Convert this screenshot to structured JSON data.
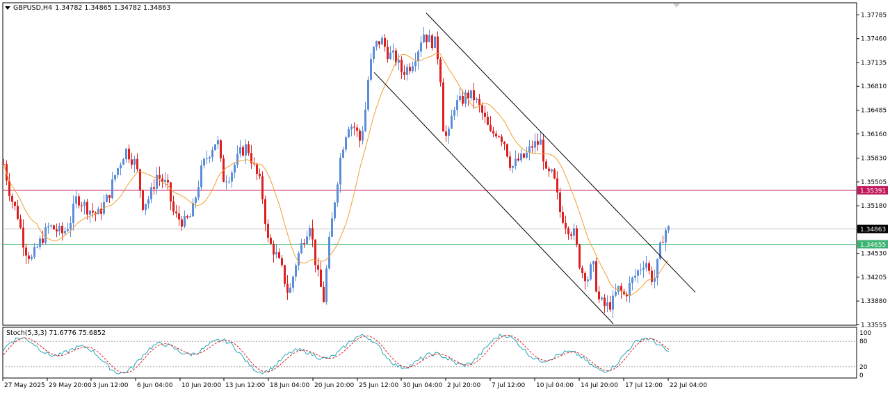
{
  "header": {
    "symbol": "GBPUSD,H4",
    "prices": "1.34782 1.34865 1.34782 1.34863"
  },
  "indicator": {
    "label": "Stoch(5,3,3) 71.6776 75.6852",
    "levels": [
      "100",
      "80",
      "20",
      "0"
    ]
  },
  "price_axis": {
    "labels": [
      "1.37785",
      "1.37460",
      "1.37135",
      "1.36810",
      "1.36485",
      "1.36160",
      "1.35830",
      "1.35505",
      "1.35180",
      "1.34855",
      "1.34530",
      "1.34205",
      "1.33880",
      "1.33555"
    ],
    "current_price": "1.34863",
    "red_level": "1.35391",
    "green_level": "1.34655"
  },
  "time_axis": {
    "labels": [
      "27 May 2025",
      "29 May 20:00",
      "3 Jun 12:00",
      "6 Jun 04:00",
      "10 Jun 20:00",
      "13 Jun 12:00",
      "18 Jun 04:00",
      "20 Jun 20:00",
      "25 Jun 12:00",
      "30 Jun 04:00",
      "2 Jul 20:00",
      "7 Jul 12:00",
      "10 Jul 04:00",
      "14 Jul 20:00",
      "17 Jul 12:00",
      "22 Jul 04:00"
    ]
  },
  "colors": {
    "bull": "#5b8dd9",
    "bear": "#dd1f1f",
    "ma": "#f0a030",
    "red_line": "#c0185c",
    "green_line": "#3cb371",
    "stoch_main": "#26a6b6",
    "stoch_signal": "#e02020"
  },
  "chart_data": {
    "type": "candlestick",
    "symbol": "GBPUSD",
    "timeframe": "H4",
    "ohlc_last": {
      "open": 1.34782,
      "high": 1.34865,
      "low": 1.34782,
      "close": 1.34863
    },
    "price_range": [
      1.3355,
      1.3795
    ],
    "horizontal_levels": [
      {
        "value": 1.35391,
        "color": "red"
      },
      {
        "value": 1.34655,
        "color": "green"
      },
      {
        "value": 1.34863,
        "color": "gray",
        "kind": "current price"
      }
    ],
    "trend_channel": {
      "upper": [
        {
          "time": "30 Jun 04:00",
          "price": 1.3781
        },
        {
          "time": "22 Jul 08:00",
          "price": 1.34
        }
      ],
      "lower": [
        {
          "time": "25 Jun 12:00",
          "price": 1.37
        },
        {
          "time": "15 Jul",
          "price": 1.3357
        }
      ]
    },
    "stochastic": {
      "params": "5,3,3",
      "main": 71.6776,
      "signal": 75.6852,
      "levels": [
        80,
        20
      ]
    }
  }
}
